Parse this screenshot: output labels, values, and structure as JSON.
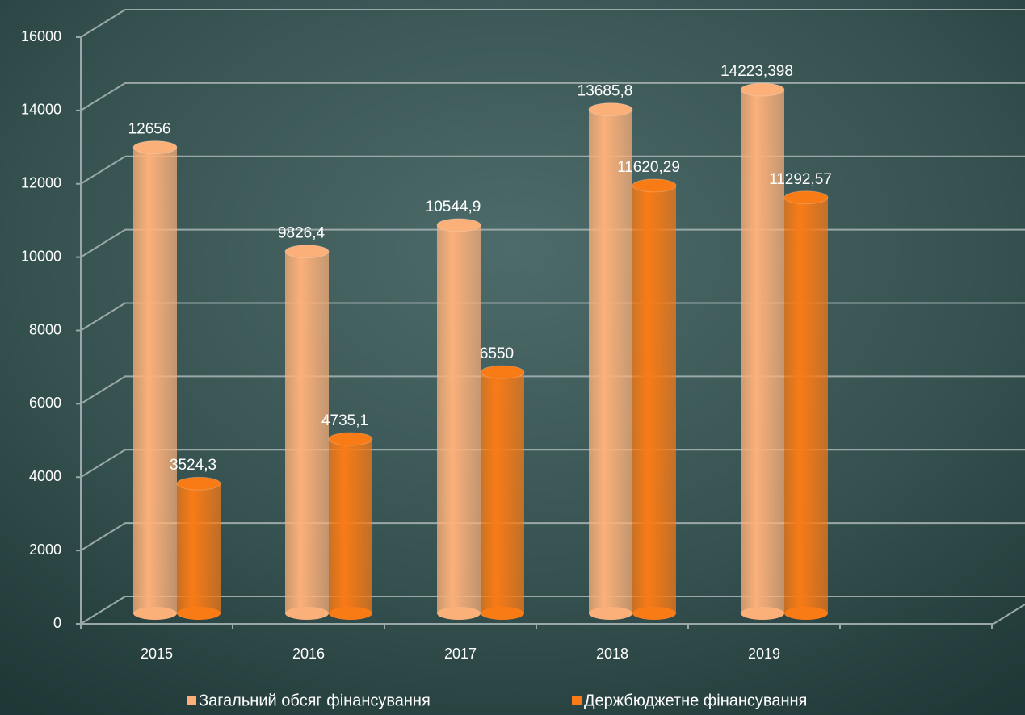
{
  "chart_data": {
    "type": "bar3d",
    "categories": [
      "2015",
      "2016",
      "2017",
      "2018",
      "2019"
    ],
    "series": [
      {
        "name": "Загальний обсяг фінансування",
        "color": "#fbb07a",
        "values": [
          12656,
          9826.4,
          10544.9,
          13685.8,
          14223.398
        ],
        "value_labels": [
          "12656",
          "9826,4",
          "10544,9",
          "13685,8",
          "14223,398"
        ]
      },
      {
        "name": "Держбюджетне фінансування",
        "color": "#f97b16",
        "values": [
          3524.3,
          4735.1,
          6550,
          11620.29,
          11292.57
        ],
        "value_labels": [
          "3524,3",
          "4735,1",
          "6550",
          "11620,29",
          "11292,57"
        ]
      }
    ],
    "ylim": [
      0,
      16000
    ],
    "yticks": [
      0,
      2000,
      4000,
      6000,
      8000,
      10000,
      12000,
      14000,
      16000
    ],
    "grid": true,
    "legend": "bottom"
  }
}
